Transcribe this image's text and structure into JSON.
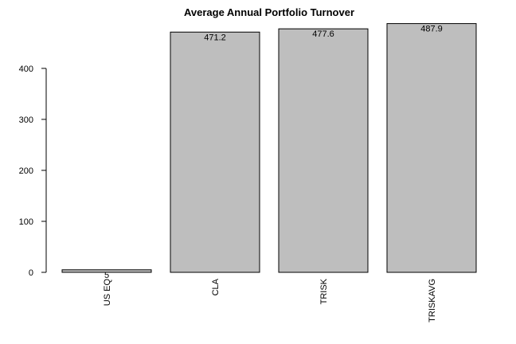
{
  "chart_data": {
    "type": "bar",
    "title": "Average Annual Portfolio Turnover",
    "xlabel": "",
    "ylabel": "",
    "categories": [
      "US EQ",
      "CLA",
      "TRISK",
      "TRISKAVG"
    ],
    "values": [
      5,
      471.2,
      477.6,
      487.9
    ],
    "data_labels": [
      "5",
      "471.2",
      "477.6",
      "487.9"
    ],
    "y_ticks": [
      0,
      100,
      200,
      300,
      400
    ],
    "ylim": [
      0,
      487.9
    ],
    "grid": false,
    "legend": "none",
    "bar_fill": "#bebebe",
    "bar_stroke": "#000000"
  }
}
